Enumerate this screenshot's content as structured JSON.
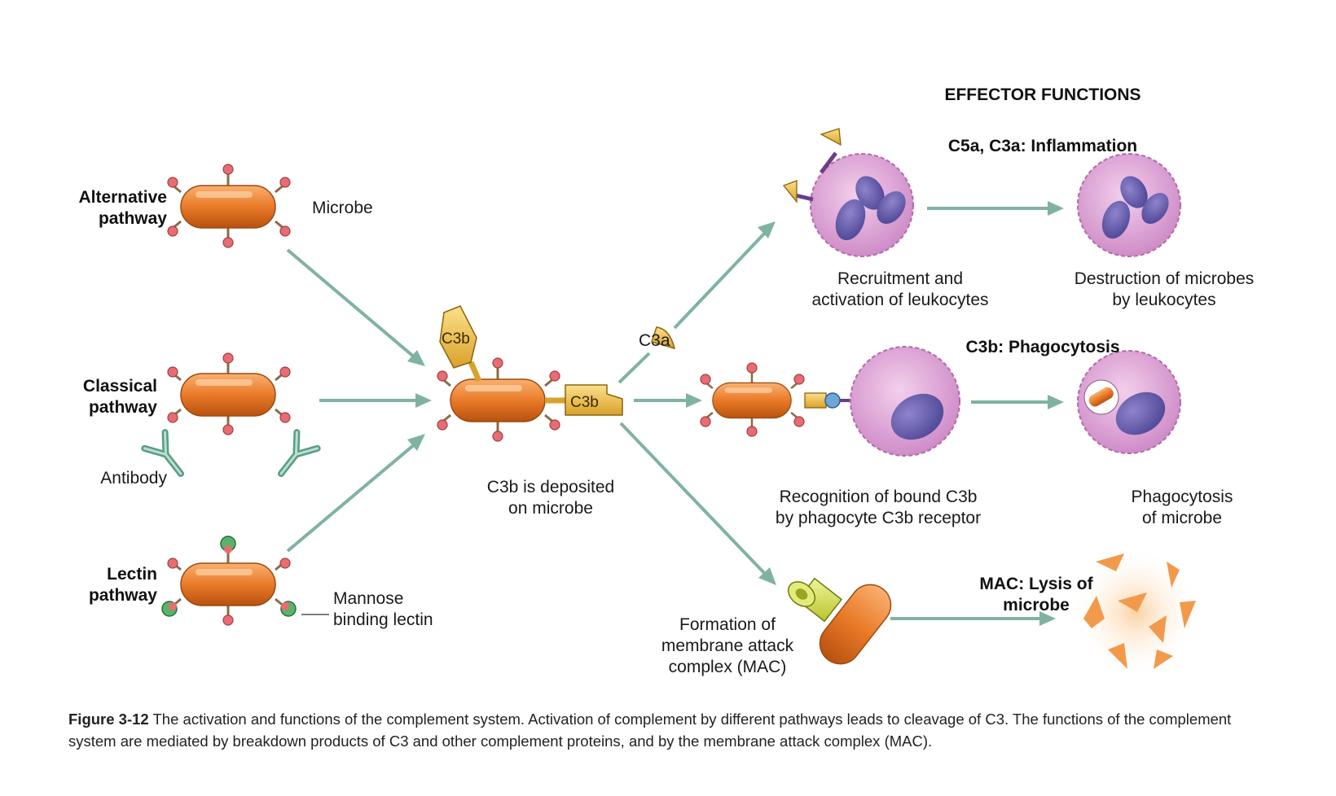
{
  "headers": {
    "effector": "EFFECTOR FUNCTIONS",
    "inflammation": "C5a, C3a: Inflammation",
    "phagocytosis": "C3b: Phagocytosis",
    "mac_1": "MAC: Lysis of",
    "mac_2": "microbe"
  },
  "pathways": {
    "alternative_1": "Alternative",
    "alternative_2": "pathway",
    "classical_1": "Classical",
    "classical_2": "pathway",
    "lectin_1": "Lectin",
    "lectin_2": "pathway"
  },
  "labels": {
    "microbe": "Microbe",
    "antibody": "Antibody",
    "mannose_1": "Mannose",
    "mannose_2": "binding lectin",
    "c3b_tag_top": "C3b",
    "c3b_tag_side": "C3b",
    "c3a": "C3a",
    "deposited_1": "C3b is deposited",
    "deposited_2": "on microbe",
    "recruit_1": "Recruitment and",
    "recruit_2": "activation of leukocytes",
    "destroy_1": "Destruction of microbes",
    "destroy_2": "by leukocytes",
    "recog_1": "Recognition of bound C3b",
    "recog_2": "by phagocyte C3b receptor",
    "phago_1": "Phagocytosis",
    "phago_2": "of microbe",
    "mac_form_1": "Formation of",
    "mac_form_2": "membrane attack",
    "mac_form_3": "complex (MAC)"
  },
  "caption": {
    "figure": "Figure 3-12",
    "text": " The activation and functions of the complement system. Activation of complement by different pathways leads to cleavage of C3. The functions of the complement system are mediated by breakdown products of C3 and other complement proteins, and by the membrane attack complex (MAC)."
  }
}
